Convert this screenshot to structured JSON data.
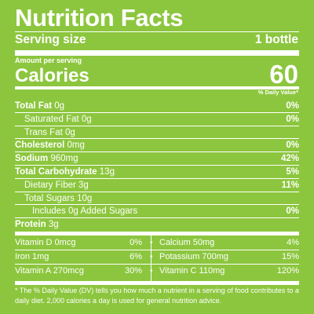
{
  "title": "Nutrition Facts",
  "serving": {
    "label": "Serving size",
    "value": "1 bottle"
  },
  "amount_per_serving": "Amount per serving",
  "calories": {
    "label": "Calories",
    "value": "60"
  },
  "daily_value_header": "% Daily Value*",
  "nutrients": [
    {
      "name": "Total Fat",
      "amount": "0g",
      "dv": "0%",
      "bold": true,
      "indent": 0
    },
    {
      "name": "Saturated Fat",
      "amount": "0g",
      "dv": "0%",
      "bold": false,
      "indent": 1
    },
    {
      "name": "Trans Fat",
      "amount": "0g",
      "dv": "",
      "bold": false,
      "indent": 1
    },
    {
      "name": "Cholesterol",
      "amount": "0mg",
      "dv": "0%",
      "bold": true,
      "indent": 0
    },
    {
      "name": "Sodium",
      "amount": "960mg",
      "dv": "42%",
      "bold": true,
      "indent": 0
    },
    {
      "name": "Total Carbohydrate",
      "amount": "13g",
      "dv": "5%",
      "bold": true,
      "indent": 0
    },
    {
      "name": "Dietary Fiber",
      "amount": "3g",
      "dv": "11%",
      "bold": false,
      "indent": 1
    },
    {
      "name": "Total Sugars",
      "amount": "10g",
      "dv": "",
      "bold": false,
      "indent": 1
    },
    {
      "name": "Includes 0g Added Sugars",
      "amount": "",
      "dv": "0%",
      "bold": false,
      "indent": 2
    },
    {
      "name": "Protein",
      "amount": "3g",
      "dv": "",
      "bold": true,
      "indent": 0
    }
  ],
  "vitamins": [
    {
      "left": {
        "name": "Vitamin D 0mcg",
        "dv": "0%"
      },
      "right": {
        "name": "Calcium 50mg",
        "dv": "4%"
      }
    },
    {
      "left": {
        "name": "Iron 1mg",
        "dv": "6%"
      },
      "right": {
        "name": "Potassium 700mg",
        "dv": "15%"
      }
    },
    {
      "left": {
        "name": "Vitamin A 270mcg",
        "dv": "30%"
      },
      "right": {
        "name": "Vitamin C 110mg",
        "dv": "120%"
      }
    }
  ],
  "separator_glyph": "•",
  "footnote": "* The % Daily Value (DV) tells you how much a nutrient in a serving of food contributes to a daily diet. 2,000 calories a day is used for general nutrition advice.",
  "colors": {
    "background": "#8cc63e",
    "text": "#ffffff"
  }
}
